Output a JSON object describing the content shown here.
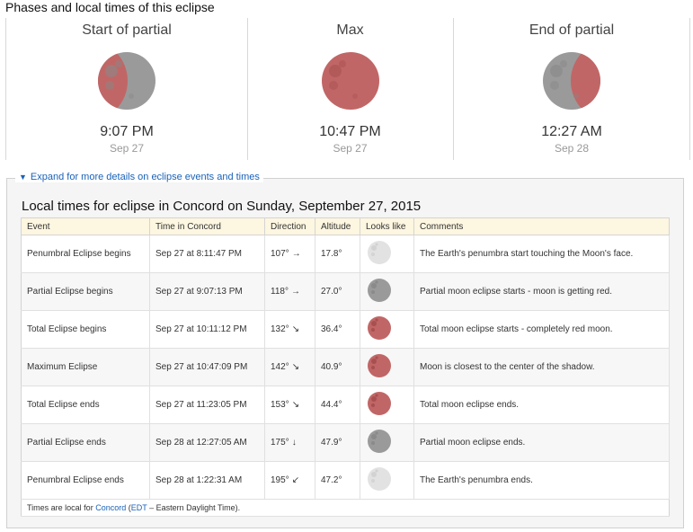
{
  "page_title": "Phases and local times of this eclipse",
  "phases": [
    {
      "name": "Start of partial",
      "time": "9:07 PM",
      "date": "Sep 27",
      "moon": "partial-start"
    },
    {
      "name": "Max",
      "time": "10:47 PM",
      "date": "Sep 27",
      "moon": "total"
    },
    {
      "name": "End of partial",
      "time": "12:27 AM",
      "date": "Sep 28",
      "moon": "partial-end"
    }
  ],
  "expand": {
    "arrow": "▼",
    "label": "Expand for more details on eclipse events and times"
  },
  "local_title": "Local times for eclipse in Concord on Sunday, September 27, 2015",
  "table": {
    "headers": {
      "event": "Event",
      "time": "Time in Concord",
      "direction": "Direction",
      "altitude": "Altitude",
      "looks": "Looks like",
      "comments": "Comments"
    },
    "rows": [
      {
        "event": "Penumbral Eclipse begins",
        "time": "Sep 27 at 8:11:47 PM",
        "direction": "107°",
        "arrow": "→",
        "altitude": "17.8°",
        "moon": "penumbral",
        "comment": "The Earth's penumbra start touching the Moon's face."
      },
      {
        "event": "Partial Eclipse begins",
        "time": "Sep 27 at 9:07:13 PM",
        "direction": "118°",
        "arrow": "→",
        "altitude": "27.0°",
        "moon": "partial",
        "comment": "Partial moon eclipse starts - moon is getting red."
      },
      {
        "event": "Total Eclipse begins",
        "time": "Sep 27 at 10:11:12 PM",
        "direction": "132°",
        "arrow": "↘",
        "altitude": "36.4°",
        "moon": "total",
        "comment": "Total moon eclipse starts - completely red moon."
      },
      {
        "event": "Maximum Eclipse",
        "time": "Sep 27 at 10:47:09 PM",
        "direction": "142°",
        "arrow": "↘",
        "altitude": "40.9°",
        "moon": "total",
        "comment": "Moon is closest to the center of the shadow."
      },
      {
        "event": "Total Eclipse ends",
        "time": "Sep 27 at 11:23:05 PM",
        "direction": "153°",
        "arrow": "↘",
        "altitude": "44.4°",
        "moon": "total",
        "comment": "Total moon eclipse ends."
      },
      {
        "event": "Partial Eclipse ends",
        "time": "Sep 28 at 12:27:05 AM",
        "direction": "175°",
        "arrow": "↓",
        "altitude": "47.9°",
        "moon": "partial",
        "comment": "Partial moon eclipse ends."
      },
      {
        "event": "Penumbral Eclipse ends",
        "time": "Sep 28 at 1:22:31 AM",
        "direction": "195°",
        "arrow": "↙",
        "altitude": "47.2°",
        "moon": "penumbral",
        "comment": "The Earth's penumbra ends."
      }
    ],
    "footer": {
      "prefix": "Times are local for ",
      "city": "Concord",
      "open": " (",
      "tz": "EDT",
      "suffix": " – Eastern Daylight Time)."
    }
  },
  "colors": {
    "link": "#1a62b8",
    "moon_grey": "#9a9a9a",
    "moon_red": "#c16666",
    "header_bg": "#fdf6e0"
  }
}
